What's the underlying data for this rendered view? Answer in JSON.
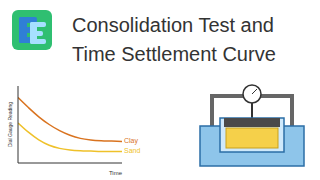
{
  "header": {
    "title_lines": [
      "Consolidation Test and",
      "Time Settlement Curve"
    ]
  },
  "chart_data": {
    "type": "line",
    "x": [
      0,
      1,
      2,
      3,
      4,
      5,
      6,
      7,
      8,
      9,
      10
    ],
    "xlim": [
      0,
      10
    ],
    "ylim": [
      0,
      10
    ],
    "tick_labels": false,
    "x_label": "Time",
    "y_label": "Dial Gauge Reading",
    "series": [
      {
        "name": "Clay",
        "color": "#d9731f",
        "values": [
          8.5,
          7.2,
          6,
          5,
          4.2,
          3.6,
          3.2,
          3,
          2.9,
          2.85,
          2.8
        ]
      },
      {
        "name": "Sand",
        "color": "#efc12a",
        "values": [
          5.2,
          4,
          3,
          2.3,
          1.9,
          1.7,
          1.6,
          1.55,
          1.5,
          1.5,
          1.5
        ]
      }
    ]
  }
}
